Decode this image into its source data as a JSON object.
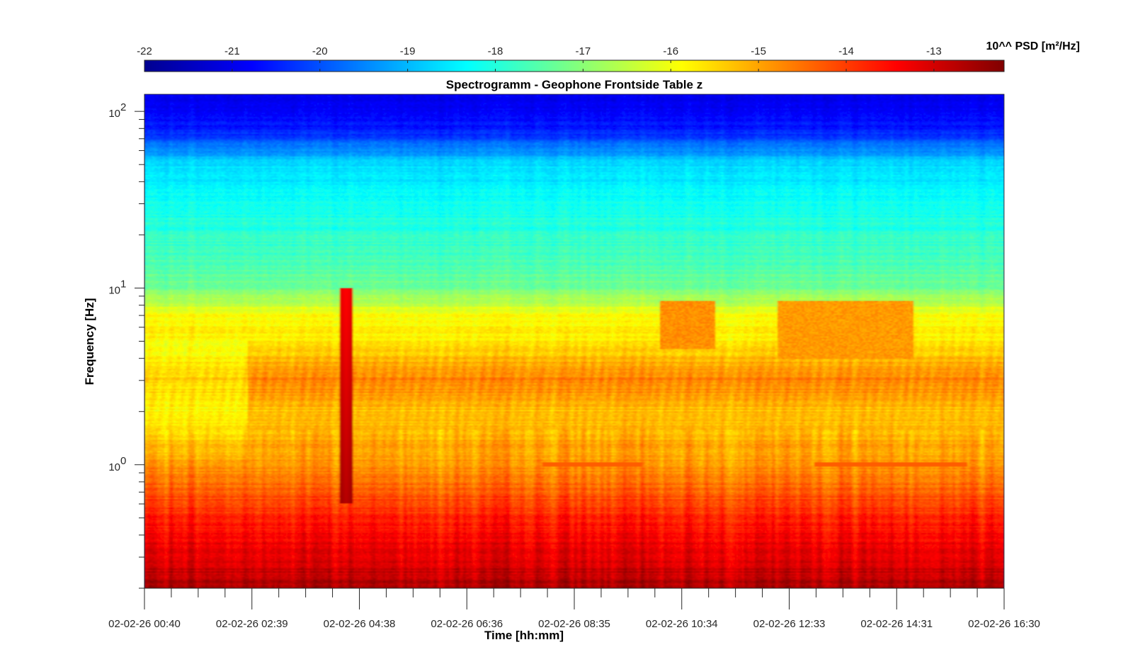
{
  "chart_data": {
    "type": "heatmap",
    "title": "Spectrogramm - Geophone Frontside Table z",
    "xlabel": "Time [hh:mm]",
    "ylabel": "Frequency [Hz]",
    "colorbar": {
      "label": "10^^ PSD [m²/Hz]",
      "colormap": "jet",
      "range": [
        -22.0,
        -12.2
      ],
      "tick_values": [
        -22,
        -21,
        -20,
        -19,
        -18,
        -17,
        -16,
        -15,
        -14,
        -13
      ],
      "tick_labels": [
        "-22",
        "-21",
        "-20",
        "-19",
        "-18",
        "-17",
        "-16",
        "-15",
        "-14",
        "-13"
      ]
    },
    "x_axis": {
      "tick_labels": [
        "02-02-26 00:40",
        "02-02-26 02:39",
        "02-02-26 04:38",
        "02-02-26 06:36",
        "02-02-26 08:35",
        "02-02-26 10:34",
        "02-02-26 12:33",
        "02-02-26 14:31",
        "02-02-26 16:30"
      ],
      "range": [
        "02-02-26 00:40",
        "02-02-26 16:30"
      ],
      "minor_ticks_per_major": 4
    },
    "y_axis": {
      "scale": "log",
      "range": [
        0.2,
        125
      ],
      "tick_values": [
        1,
        10,
        100
      ],
      "tick_labels": [
        "10",
        "10",
        "10"
      ],
      "tick_exponents": [
        "0",
        "1",
        "2"
      ]
    },
    "psd_profile_log10": [
      {
        "frequency_hz": 0.2,
        "psd": -12.6
      },
      {
        "frequency_hz": 0.3,
        "psd": -13.1
      },
      {
        "frequency_hz": 0.5,
        "psd": -13.7
      },
      {
        "frequency_hz": 1.0,
        "psd": -14.9
      },
      {
        "frequency_hz": 2.0,
        "psd": -15.3
      },
      {
        "frequency_hz": 3.0,
        "psd": -14.6
      },
      {
        "frequency_hz": 5.0,
        "psd": -15.7
      },
      {
        "frequency_hz": 7.0,
        "psd": -15.9
      },
      {
        "frequency_hz": 10.0,
        "psd": -17.2
      },
      {
        "frequency_hz": 15.0,
        "psd": -17.7
      },
      {
        "frequency_hz": 30.0,
        "psd": -18.2
      },
      {
        "frequency_hz": 50.0,
        "psd": -18.6
      },
      {
        "frequency_hz": 80.0,
        "psd": -20.6
      },
      {
        "frequency_hz": 125.0,
        "psd": -20.9
      }
    ],
    "features": [
      {
        "type": "burst",
        "time": "02-02-26 04:23",
        "frequency_range_hz": [
          0.6,
          10
        ],
        "psd": -13.0
      },
      {
        "type": "line",
        "time_range": [
          "02-02-26 08:00",
          "02-02-26 09:50"
        ],
        "frequency_hz": 1.0,
        "psd": -14.3
      },
      {
        "type": "line",
        "time_range": [
          "02-02-26 13:00",
          "02-02-26 15:50"
        ],
        "frequency_hz": 1.0,
        "psd": -14.3
      },
      {
        "type": "patch",
        "time_range": [
          "02-02-26 10:10",
          "02-02-26 11:10"
        ],
        "frequency_range_hz": [
          4.5,
          8.5
        ],
        "psd": -14.8
      },
      {
        "type": "patch",
        "time_range": [
          "02-02-26 12:20",
          "02-02-26 14:50"
        ],
        "frequency_range_hz": [
          4.0,
          8.5
        ],
        "psd": -14.9
      }
    ]
  }
}
